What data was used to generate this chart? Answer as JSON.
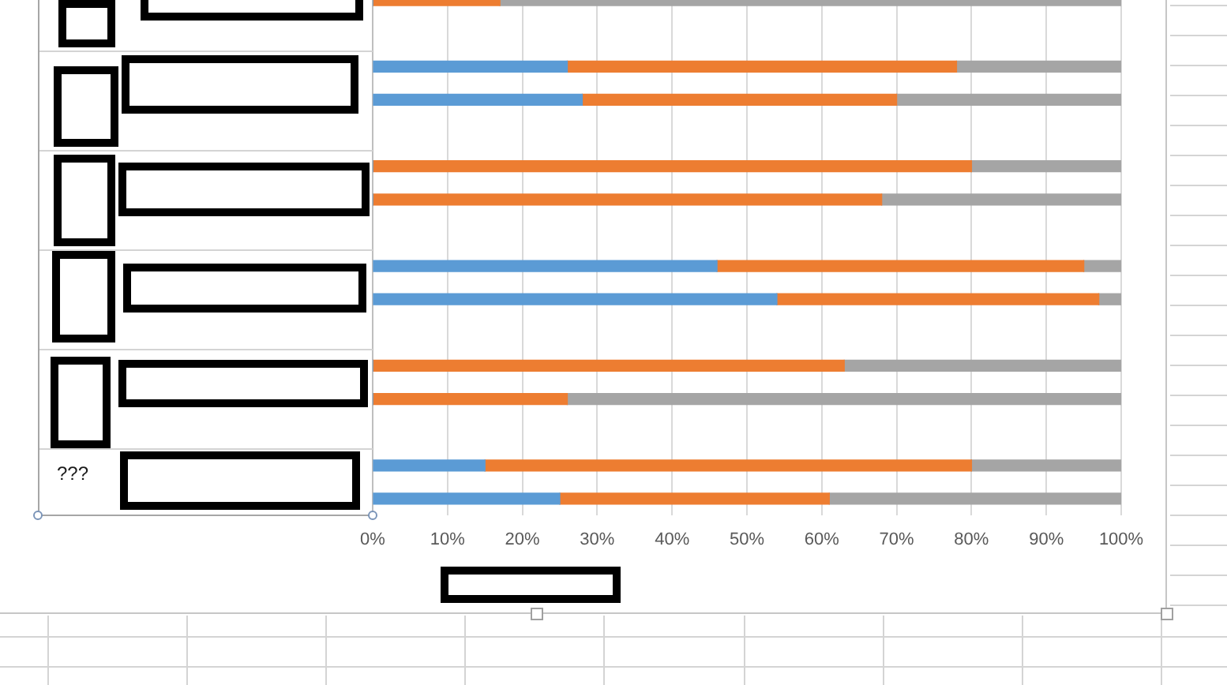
{
  "chart_data": {
    "type": "bar",
    "orientation": "horizontal",
    "stacked": true,
    "categories": [
      null,
      null,
      null,
      null,
      null,
      null,
      null,
      null,
      null,
      null,
      null,
      null,
      null,
      null,
      null,
      null
    ],
    "series": [
      {
        "color": "#5b9bd5",
        "values": [
          0,
          null,
          26,
          28,
          null,
          0,
          0,
          null,
          46,
          54,
          null,
          0,
          0,
          null,
          15,
          25
        ]
      },
      {
        "color": "#ed7d31",
        "values": [
          17,
          null,
          52,
          42,
          null,
          80,
          68,
          null,
          49,
          43,
          null,
          63,
          26,
          null,
          65,
          36
        ]
      },
      {
        "color": "#a5a5a5",
        "values": [
          83,
          null,
          22,
          30,
          null,
          20,
          32,
          null,
          5,
          3,
          null,
          37,
          74,
          null,
          20,
          39
        ]
      }
    ],
    "xlim": [
      0,
      100
    ],
    "xticks": [
      {
        "value": 0,
        "label": "0%"
      },
      {
        "value": 10,
        "label": "10%"
      },
      {
        "value": 20,
        "label": "20%"
      },
      {
        "value": 30,
        "label": "30%"
      },
      {
        "value": 40,
        "label": "40%"
      },
      {
        "value": 50,
        "label": "50%"
      },
      {
        "value": 60,
        "label": "60%"
      },
      {
        "value": 70,
        "label": "70%"
      },
      {
        "value": 80,
        "label": "80%"
      },
      {
        "value": 90,
        "label": "90%"
      },
      {
        "value": 100,
        "label": "100%"
      }
    ],
    "grid": "x",
    "annotations": [
      "???"
    ]
  }
}
